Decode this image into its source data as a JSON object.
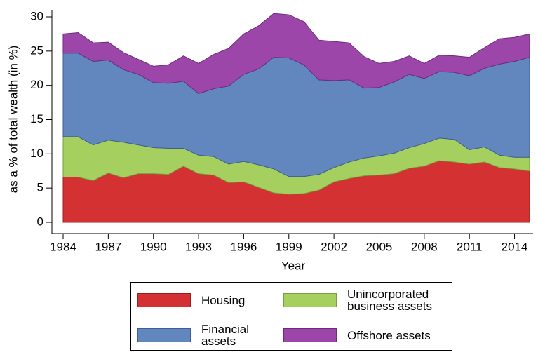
{
  "chart_data": {
    "type": "stacked_area",
    "xlabel": "Year",
    "ylabel": "as a % of total wealth (in %)",
    "x": [
      1984,
      1985,
      1986,
      1987,
      1988,
      1989,
      1990,
      1991,
      1992,
      1993,
      1994,
      1995,
      1996,
      1997,
      1998,
      1999,
      2000,
      2001,
      2002,
      2003,
      2004,
      2005,
      2006,
      2007,
      2008,
      2009,
      2010,
      2011,
      2012,
      2013,
      2014,
      2015
    ],
    "series": [
      {
        "name": "Housing",
        "color": "#d43232",
        "values": [
          6.6,
          6.6,
          6.1,
          7.2,
          6.5,
          7.1,
          7.1,
          7.0,
          8.2,
          7.1,
          6.9,
          5.8,
          5.9,
          5.1,
          4.3,
          4.1,
          4.2,
          4.7,
          5.9,
          6.4,
          6.8,
          6.9,
          7.1,
          7.9,
          8.2,
          9.0,
          8.8,
          8.5,
          8.8,
          8.0,
          7.8,
          7.5
        ]
      },
      {
        "name": "Unincorporated business assets",
        "color": "#a5d05f",
        "values": [
          5.9,
          5.9,
          5.2,
          4.8,
          5.2,
          4.2,
          3.8,
          3.8,
          2.6,
          2.7,
          2.7,
          2.7,
          3.0,
          3.3,
          3.5,
          2.6,
          2.5,
          2.3,
          2.1,
          2.4,
          2.6,
          2.8,
          3.0,
          3.0,
          3.3,
          3.3,
          3.3,
          2.1,
          2.2,
          1.8,
          1.7,
          2.0
        ]
      },
      {
        "name": "Financial assets",
        "color": "#6286be",
        "values": [
          12.2,
          12.2,
          12.2,
          11.7,
          10.6,
          10.3,
          9.5,
          9.5,
          9.8,
          9.0,
          9.9,
          11.4,
          12.7,
          14.0,
          16.3,
          17.3,
          16.3,
          13.8,
          12.7,
          12.0,
          10.2,
          10.0,
          10.4,
          10.7,
          9.5,
          9.7,
          9.8,
          10.8,
          11.5,
          13.3,
          14.0,
          14.6
        ]
      },
      {
        "name": "Offshore assets",
        "color": "#9c46aa",
        "values": [
          2.8,
          3.0,
          2.7,
          2.6,
          2.5,
          2.2,
          2.4,
          2.7,
          3.7,
          4.4,
          5.0,
          5.5,
          5.9,
          6.3,
          6.4,
          6.3,
          6.3,
          5.8,
          5.7,
          5.4,
          4.6,
          3.5,
          3.0,
          2.7,
          2.2,
          2.4,
          2.4,
          2.7,
          3.0,
          3.7,
          3.5,
          3.4
        ]
      }
    ],
    "xlim": [
      1984,
      2015
    ],
    "xticks": [
      1984,
      1987,
      1990,
      1993,
      1996,
      1999,
      2002,
      2005,
      2008,
      2011,
      2014
    ],
    "ylim": [
      0,
      30
    ],
    "yticks": [
      0,
      5,
      10,
      15,
      20,
      25,
      30
    ],
    "legend": "bottom"
  }
}
